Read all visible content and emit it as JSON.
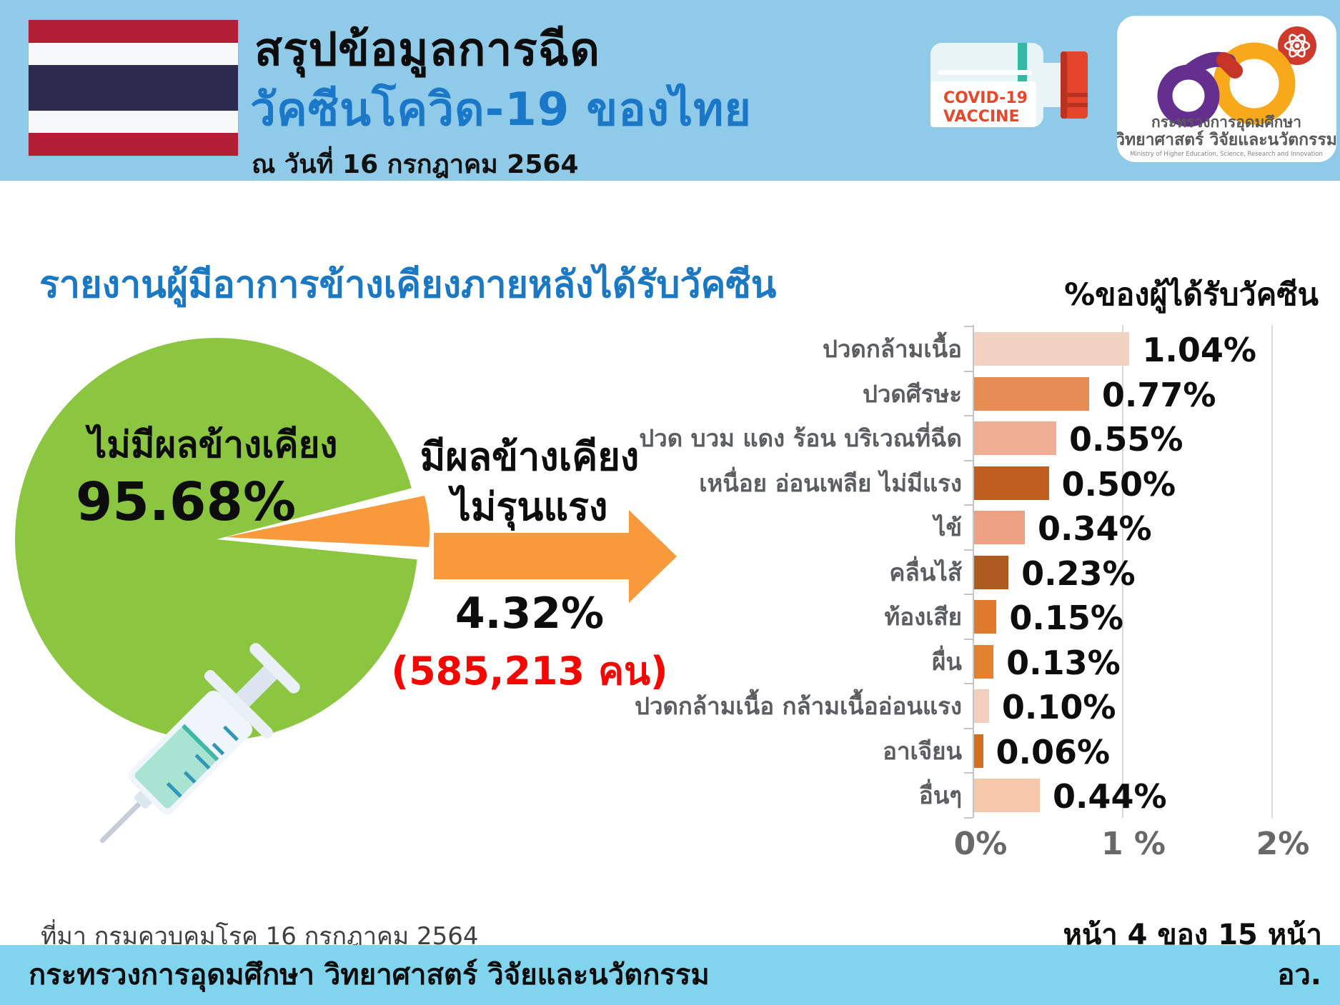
{
  "header": {
    "title": "สรุปข้อมูลการฉีด",
    "subtitle": "วัคซีนโควิด-19 ของไทย",
    "date": "ณ วันที่ 16 กรกฎาคม 2564",
    "bottle": {
      "line1": "COVID-19",
      "line2": "VACCINE"
    },
    "logo": {
      "thai_line1": "กระทรวงการอุดมศึกษา",
      "thai_line2": "วิทยาศาสตร์ วิจัยและนวัตกรรม",
      "english_line": "Ministry of Higher Education, Science, Research and Innovation"
    }
  },
  "section": {
    "title": "รายงานผู้มีอาการข้างเคียงภายหลังได้รับวัคซีน",
    "axis_note": "%ของผู้ได้รับวัคซีน"
  },
  "chart_data": [
    {
      "type": "pie",
      "labels": [
        "ไม่มีผลข้างเคียง",
        "มีผลข้างเคียง ไม่รุนแรง"
      ],
      "values": [
        95.68,
        4.32
      ],
      "colors": [
        "#8CC540",
        "#F89A3C"
      ],
      "label1": "ไม่มีผลข้างเคียง",
      "value1_label": "95.68%",
      "label2_line1": "มีผลข้างเคียง",
      "label2_line2": "ไม่รุนแรง",
      "value2_label": "4.32%",
      "annotation": "(585,213 คน)",
      "annotation_color": "#F50600"
    },
    {
      "type": "bar",
      "orientation": "horizontal",
      "title": "%ของผู้ได้รับวัคซีน",
      "categories": [
        "ปวดกล้ามเนื้อ",
        "ปวดศีรษะ",
        "ปวด บวม แดง ร้อน บริเวณที่ฉีด",
        "เหนื่อย อ่อนเพลีย ไม่มีแรง",
        "ไข้",
        "คลื่นไส้",
        "ท้องเสีย",
        "ผื่น",
        "ปวดกล้ามเนื้อ กล้ามเนื้ออ่อนแรง",
        "อาเจียน",
        "อื่นๆ"
      ],
      "values": [
        1.04,
        0.77,
        0.55,
        0.5,
        0.34,
        0.23,
        0.15,
        0.13,
        0.1,
        0.06,
        0.44
      ],
      "value_labels": [
        "1.04%",
        "0.77%",
        "0.55%",
        "0.50%",
        "0.34%",
        "0.23%",
        "0.15%",
        "0.13%",
        "0.10%",
        "0.06%",
        "0.44%"
      ],
      "bar_colors": [
        "#F2D2C3",
        "#E78C53",
        "#EFAE94",
        "#BF5E1F",
        "#ECA183",
        "#AE5B20",
        "#DF7A2D",
        "#E5812E",
        "#F3CDBD",
        "#D66E1D",
        "#F5C8A9"
      ],
      "xlim": [
        0,
        2
      ],
      "x_ticks": [
        "0%",
        "1 %",
        "2%"
      ],
      "grid": true,
      "legend": false
    }
  ],
  "footer": {
    "source": "ที่มา กรมควบคุมโรค 16 กรกฎาคม 2564",
    "page_indicator": "หน้า 4 ของ 15 หน้า",
    "ministry": "กระทรวงการอุดมศึกษา วิทยาศาสตร์ วิจัยและนวัตกรรม",
    "ministry_abbr": "อว."
  },
  "colors": {
    "header_band": "#8FCAE9",
    "footer_band": "#80D4EE",
    "title_blue": "#1B78C8",
    "pie_green": "#8CC540",
    "arrow_orange": "#F89A3C",
    "red_text": "#F50600"
  }
}
